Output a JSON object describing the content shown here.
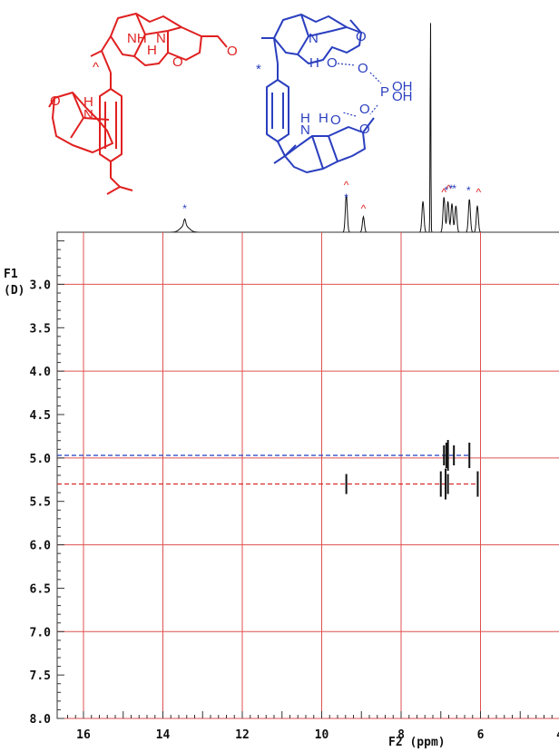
{
  "chart_data": {
    "type": "2D NMR (DOSY)",
    "x_axis": {
      "label": "F2 (ppm)",
      "range": [
        16.5,
        4
      ],
      "reversed": true,
      "tick_labels": [
        "16",
        "14",
        "12",
        "10",
        "8",
        "6",
        "4"
      ]
    },
    "y_axis": {
      "label_line1": "F1",
      "label_line2": "(D)",
      "range": [
        2.4,
        8.0
      ],
      "tick_labels": [
        "3.0",
        "3.5",
        "4.0",
        "4.5",
        "5.0",
        "5.5",
        "6.0",
        "6.5",
        "7.0",
        "7.5",
        "8.0"
      ]
    },
    "grid": true,
    "projection_1d": {
      "peaks": [
        {
          "ppm": 13.45,
          "height": 0.03,
          "marker": "*"
        },
        {
          "ppm": 9.38,
          "height": 0.17,
          "marker": "^*"
        },
        {
          "ppm": 8.95,
          "height": 0.07,
          "marker": "^"
        },
        {
          "ppm": 7.45,
          "height": 0.14
        },
        {
          "ppm": 7.26,
          "height": 1.0
        },
        {
          "ppm": 6.92,
          "height": 0.16
        },
        {
          "ppm": 6.82,
          "height": 0.14
        },
        {
          "ppm": 6.72,
          "height": 0.13
        },
        {
          "ppm": 6.62,
          "height": 0.12
        },
        {
          "ppm": 6.28,
          "height": 0.15
        },
        {
          "ppm": 6.08,
          "height": 0.12
        }
      ],
      "marker_groups": [
        {
          "ppm": 6.85,
          "symbols": "^*^**"
        },
        {
          "ppm": 6.3,
          "symbols": "*"
        },
        {
          "ppm": 6.05,
          "symbols": "^"
        }
      ]
    },
    "series": [
      {
        "color": "#1f3fbf",
        "diffusion": 4.97,
        "cross_peaks_ppm": [
          6.92,
          6.86,
          6.82,
          6.67,
          6.28
        ]
      },
      {
        "color": "#d42020",
        "diffusion": 5.3,
        "cross_peaks_ppm": [
          9.38,
          7.0,
          6.88,
          6.82,
          6.07
        ]
      }
    ]
  },
  "molecules": {
    "red_color": "#e02020",
    "blue_color": "#2a3fbf",
    "red": {
      "mark_cage": "^",
      "nh_top": "NH",
      "n_top": "N",
      "h_top": "H",
      "o_top": "O",
      "o_ald_top": "O",
      "h_bottom": "H",
      "n_bottom": "N",
      "o_bottom": "O"
    },
    "blue": {
      "mark_ring": "*",
      "n_top": "N",
      "h_top": "H",
      "o_top": "O",
      "o_ald_top": "O",
      "nh_bottom": "N",
      "h_bottom": "H",
      "o_bottom": "O",
      "h_label2": "H",
      "o_ald_bottom": "O"
    },
    "phosphate": {
      "o1": "O",
      "p": "P",
      "oh1": "OH",
      "oh2": "OH",
      "o2": "O"
    }
  }
}
